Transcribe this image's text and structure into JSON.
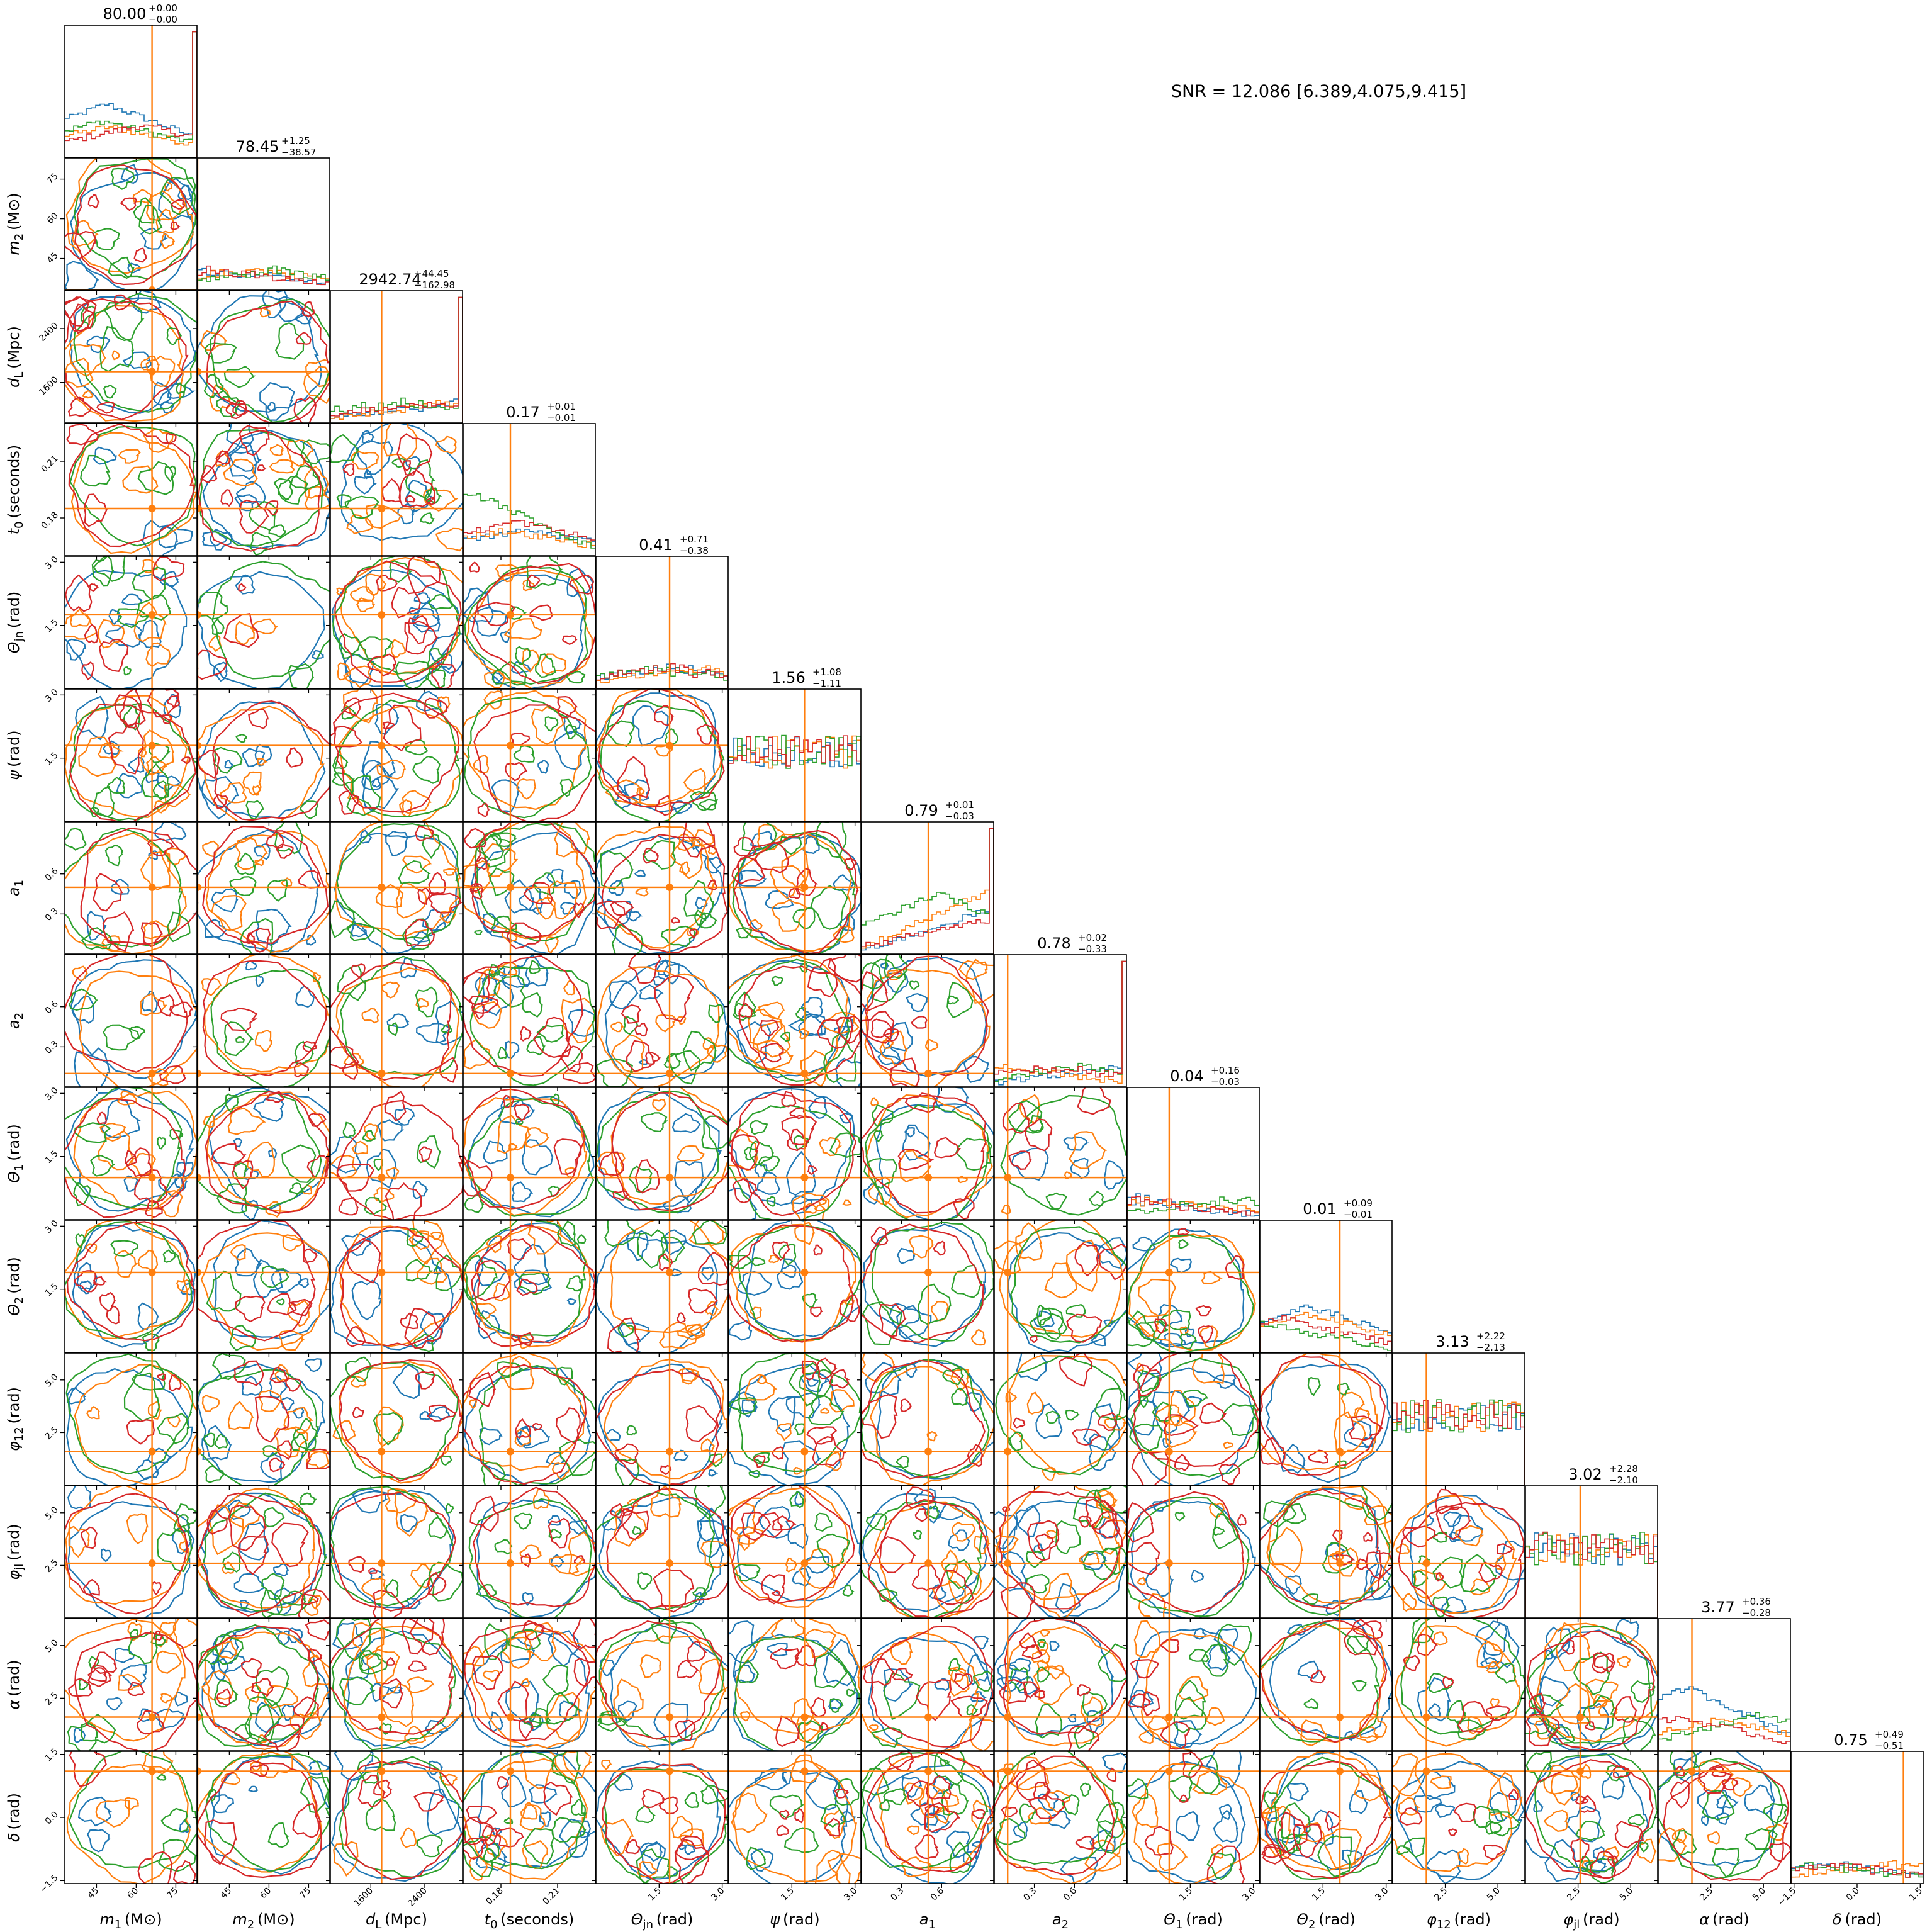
{
  "snr_text": "SNR = 12.086 [6.389,4.075,9.415]",
  "colors": {
    "blue": "#1f77b4",
    "orange": "#ff7f0e",
    "green": "#2ca02c",
    "red": "#d62728",
    "frame": "#000000"
  },
  "chart_data": {
    "type": "corner",
    "series_colors": [
      "#1f77b4",
      "#ff7f0e",
      "#2ca02c",
      "#d62728"
    ],
    "truth_color": "#ff7f0e",
    "parameters": [
      {
        "label": "m_1 (M_⊙)",
        "xlabel_main": "m",
        "sub": "1",
        "unit": "(M⊙)",
        "range": [
          33,
          83
        ],
        "xticks": [
          {
            "v": 45,
            "t": "45"
          },
          {
            "v": 60,
            "t": "60"
          },
          {
            "v": 75,
            "t": "75"
          }
        ],
        "yticks": [],
        "truth": 66,
        "summary": {
          "median": "80.00",
          "plus": "+0.00",
          "minus": "−0.00"
        }
      },
      {
        "label": "m_2 (M_⊙)",
        "xlabel_main": "m",
        "sub": "2",
        "unit": "(M⊙)",
        "range": [
          33,
          83
        ],
        "xticks": [
          {
            "v": 45,
            "t": "45"
          },
          {
            "v": 60,
            "t": "60"
          },
          {
            "v": 75,
            "t": "75"
          }
        ],
        "yticks": [
          {
            "v": 45,
            "t": "45"
          },
          {
            "v": 60,
            "t": "60"
          },
          {
            "v": 75,
            "t": "75"
          }
        ],
        "truth": 33,
        "summary": {
          "median": "78.45",
          "plus": "+1.25",
          "minus": "−38.57"
        }
      },
      {
        "label": "d_L (Mpc)",
        "xlabel_main": "d",
        "sub": "L",
        "unit": "(Mpc)",
        "range": [
          1000,
          2960
        ],
        "xticks": [
          {
            "v": 1600,
            "t": "1600"
          },
          {
            "v": 2400,
            "t": "2400"
          }
        ],
        "yticks": [
          {
            "v": 1600,
            "t": "1600"
          },
          {
            "v": 2400,
            "t": "2400"
          }
        ],
        "truth": 1760,
        "summary": {
          "median": "2942.74",
          "plus": "+44.45",
          "minus": "−162.98"
        }
      },
      {
        "label": "t_0 (seconds)",
        "xlabel_main": "t",
        "sub": "0",
        "unit": "(seconds)",
        "range": [
          0.16,
          0.23
        ],
        "xticks": [
          {
            "v": 0.18,
            "t": "0.18"
          },
          {
            "v": 0.21,
            "t": "0.21"
          }
        ],
        "yticks": [
          {
            "v": 0.18,
            "t": "0.18"
          },
          {
            "v": 0.21,
            "t": "0.21"
          }
        ],
        "truth": 0.185,
        "summary": {
          "median": "0.17",
          "plus": "+0.01",
          "minus": "−0.01"
        }
      },
      {
        "label": "Θ_jn (rad)",
        "xlabel_main": "Θ",
        "sub": "jn",
        "unit": "(rad)",
        "range": [
          0,
          3.14
        ],
        "xticks": [
          {
            "v": 1.5,
            "t": "1.5"
          },
          {
            "v": 3.0,
            "t": "3.0"
          }
        ],
        "yticks": [
          {
            "v": 1.5,
            "t": "1.5"
          },
          {
            "v": 3.0,
            "t": "3.0"
          }
        ],
        "truth": 1.75,
        "summary": {
          "median": "0.41",
          "plus": "+0.71",
          "minus": "−0.38"
        }
      },
      {
        "label": "ψ (rad)",
        "xlabel_main": "ψ",
        "sub": "",
        "unit": "(rad)",
        "range": [
          0,
          3.14
        ],
        "xticks": [
          {
            "v": 1.5,
            "t": "1.5"
          },
          {
            "v": 3.0,
            "t": "3.0"
          }
        ],
        "yticks": [
          {
            "v": 1.5,
            "t": "1.5"
          },
          {
            "v": 3.0,
            "t": "3.0"
          }
        ],
        "truth": 1.8,
        "summary": {
          "median": "1.56",
          "plus": "+1.08",
          "minus": "−1.11"
        }
      },
      {
        "label": "a_1",
        "xlabel_main": "a",
        "sub": "1",
        "unit": "",
        "range": [
          0,
          0.99
        ],
        "xticks": [
          {
            "v": 0.3,
            "t": "0.3"
          },
          {
            "v": 0.6,
            "t": "0.6"
          }
        ],
        "yticks": [
          {
            "v": 0.3,
            "t": "0.3"
          },
          {
            "v": 0.6,
            "t": "0.6"
          }
        ],
        "truth": 0.5,
        "summary": {
          "median": "0.79",
          "plus": "+0.01",
          "minus": "−0.03"
        }
      },
      {
        "label": "a_2",
        "xlabel_main": "a",
        "sub": "2",
        "unit": "",
        "range": [
          0,
          0.99
        ],
        "xticks": [
          {
            "v": 0.3,
            "t": "0.3"
          },
          {
            "v": 0.6,
            "t": "0.6"
          }
        ],
        "yticks": [
          {
            "v": 0.3,
            "t": "0.3"
          },
          {
            "v": 0.6,
            "t": "0.6"
          }
        ],
        "truth": 0.1,
        "summary": {
          "median": "0.78",
          "plus": "+0.02",
          "minus": "−0.33"
        }
      },
      {
        "label": "Θ_1 (rad)",
        "xlabel_main": "Θ",
        "sub": "1",
        "unit": "(rad)",
        "range": [
          0,
          3.14
        ],
        "xticks": [
          {
            "v": 1.5,
            "t": "1.5"
          },
          {
            "v": 3.0,
            "t": "3.0"
          }
        ],
        "yticks": [
          {
            "v": 1.5,
            "t": "1.5"
          },
          {
            "v": 3.0,
            "t": "3.0"
          }
        ],
        "truth": 1.0,
        "summary": {
          "median": "0.04",
          "plus": "+0.16",
          "minus": "−0.03"
        }
      },
      {
        "label": "Θ_2 (rad)",
        "xlabel_main": "Θ",
        "sub": "2",
        "unit": "(rad)",
        "range": [
          0,
          3.14
        ],
        "xticks": [
          {
            "v": 1.5,
            "t": "1.5"
          },
          {
            "v": 3.0,
            "t": "3.0"
          }
        ],
        "yticks": [
          {
            "v": 1.5,
            "t": "1.5"
          },
          {
            "v": 3.0,
            "t": "3.0"
          }
        ],
        "truth": 1.9,
        "summary": {
          "median": "0.01",
          "plus": "+0.09",
          "minus": "−0.01"
        }
      },
      {
        "label": "φ_12 (rad)",
        "xlabel_main": "φ",
        "sub": "12",
        "unit": "(rad)",
        "range": [
          0,
          6.28
        ],
        "xticks": [
          {
            "v": 2.5,
            "t": "2.5"
          },
          {
            "v": 5.0,
            "t": "5.0"
          }
        ],
        "yticks": [
          {
            "v": 2.5,
            "t": "2.5"
          },
          {
            "v": 5.0,
            "t": "5.0"
          }
        ],
        "truth": 1.6,
        "summary": {
          "median": "3.13",
          "plus": "+2.22",
          "minus": "−2.13"
        }
      },
      {
        "label": "φ_jl (rad)",
        "xlabel_main": "φ",
        "sub": "jl",
        "unit": "(rad)",
        "range": [
          0,
          6.28
        ],
        "xticks": [
          {
            "v": 2.5,
            "t": "2.5"
          },
          {
            "v": 5.0,
            "t": "5.0"
          }
        ],
        "yticks": [
          {
            "v": 2.5,
            "t": "2.5"
          },
          {
            "v": 5.0,
            "t": "5.0"
          }
        ],
        "truth": 2.6,
        "summary": {
          "median": "3.02",
          "plus": "+2.28",
          "minus": "−2.10"
        }
      },
      {
        "label": "α (rad)",
        "xlabel_main": "α",
        "sub": "",
        "unit": "(rad)",
        "range": [
          0,
          6.28
        ],
        "xticks": [
          {
            "v": 2.5,
            "t": "2.5"
          },
          {
            "v": 5.0,
            "t": "5.0"
          }
        ],
        "yticks": [
          {
            "v": 2.5,
            "t": "2.5"
          },
          {
            "v": 5.0,
            "t": "5.0"
          }
        ],
        "truth": 1.6,
        "summary": {
          "median": "3.77",
          "plus": "+0.36",
          "minus": "−0.28"
        }
      },
      {
        "label": "δ (rad)",
        "xlabel_main": "δ",
        "sub": "",
        "unit": "(rad)",
        "range": [
          -1.57,
          1.57
        ],
        "xticks": [
          {
            "v": -1.5,
            "t": "−1.5"
          },
          {
            "v": 0.0,
            "t": "0.0"
          },
          {
            "v": 1.5,
            "t": "1.5"
          }
        ],
        "yticks": [
          {
            "v": -1.5,
            "t": "−1.5"
          },
          {
            "v": 0.0,
            "t": "0.0"
          },
          {
            "v": 1.5,
            "t": "1.5"
          }
        ],
        "truth": 1.1,
        "summary": {
          "median": "0.75",
          "plus": "+0.49",
          "minus": "−0.51"
        }
      }
    ]
  }
}
